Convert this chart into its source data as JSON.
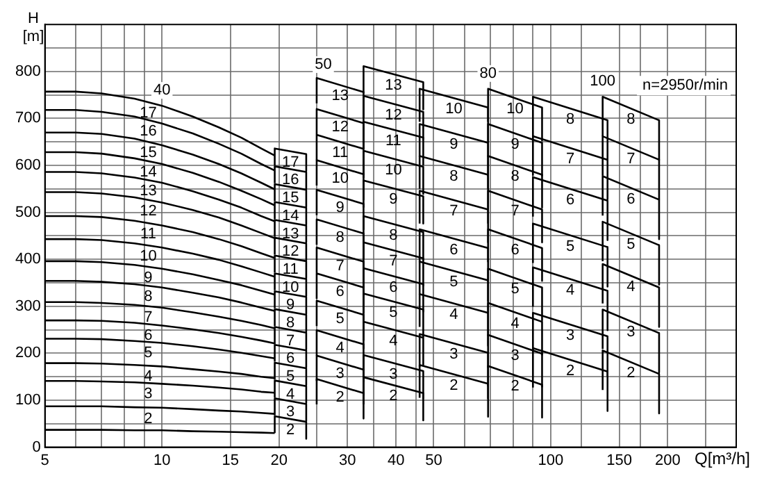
{
  "chart_data": {
    "type": "line",
    "xlabel": "Q[m³/h]",
    "ylabel": "H [m]",
    "log": "x",
    "grid": true,
    "legend": false,
    "marker": "none",
    "line_style": "solid",
    "xlim": [
      5,
      300
    ],
    "ylim": [
      0,
      900
    ],
    "xticks": [
      5,
      {
        "value": 6,
        "label": null
      },
      {
        "value": 7,
        "label": null
      },
      {
        "value": 8,
        "label": null
      },
      {
        "value": 9,
        "label": null
      },
      10,
      15,
      20,
      {
        "value": 25,
        "label": null
      },
      30,
      {
        "value": 35,
        "label": null
      },
      40,
      {
        "value": 45,
        "label": null
      },
      50,
      {
        "value": 60,
        "label": null
      },
      {
        "value": 70,
        "label": null
      },
      {
        "value": 80,
        "label": null
      },
      {
        "value": 90,
        "label": null
      },
      100,
      {
        "value": 120,
        "label": null
      },
      150,
      {
        "value": 170,
        "label": null
      },
      200,
      {
        "value": 250,
        "label": null
      }
    ],
    "yticks": [
      0,
      {
        "value": 50,
        "label": null
      },
      100,
      {
        "value": 150,
        "label": null
      },
      200,
      {
        "value": 250,
        "label": null
      },
      300,
      {
        "value": 350,
        "label": null
      },
      400,
      {
        "value": 450,
        "label": null
      },
      500,
      {
        "value": 550,
        "label": null
      },
      600,
      {
        "value": 650,
        "label": null
      },
      700,
      {
        "value": 750,
        "label": null
      },
      800,
      {
        "value": 850,
        "label": null
      }
    ],
    "x": [
      5,
      6,
      7,
      8.5,
      10,
      12,
      14,
      16,
      18,
      19.5
    ],
    "series": [
      {
        "color": "#000000",
        "values": [
          37,
          37,
          37,
          36,
          36,
          34,
          33,
          32,
          31,
          30
        ]
      },
      {
        "name": "2",
        "color": "#000000",
        "values": [
          87,
          87,
          87,
          85,
          84,
          81,
          78,
          76,
          73,
          71
        ]
      },
      {
        "name": "3",
        "color": "#000000",
        "values": [
          141,
          141,
          140,
          138,
          135,
          131,
          127,
          123,
          118,
          116
        ]
      },
      {
        "name": "4",
        "color": "#000000",
        "values": [
          179,
          179,
          178,
          175,
          172,
          166,
          161,
          156,
          150,
          147
        ]
      },
      {
        "name": "5",
        "color": "#000000",
        "values": [
          231,
          231,
          230,
          226,
          222,
          215,
          208,
          201,
          194,
          189
        ]
      },
      {
        "name": "6",
        "color": "#000000",
        "values": [
          270,
          270,
          269,
          265,
          259,
          251,
          243,
          235,
          227,
          221
        ]
      },
      {
        "name": "7",
        "color": "#000000",
        "values": [
          309,
          309,
          307,
          303,
          297,
          287,
          278,
          269,
          260,
          253
        ]
      },
      {
        "name": "8",
        "color": "#000000",
        "values": [
          354,
          354,
          352,
          347,
          340,
          329,
          319,
          308,
          297,
          290
        ]
      },
      {
        "name": "9",
        "color": "#000000",
        "values": [
          396,
          396,
          394,
          388,
          380,
          368,
          356,
          345,
          333,
          325
        ]
      },
      {
        "name": "10",
        "color": "#000000",
        "values": [
          443,
          443,
          441,
          434,
          425,
          412,
          399,
          385,
          372,
          363
        ]
      },
      {
        "name": "11",
        "color": "#000000",
        "values": [
          492,
          492,
          490,
          482,
          472,
          458,
          443,
          428,
          413,
          403
        ]
      },
      {
        "name": "12",
        "color": "#000000",
        "values": [
          543,
          543,
          540,
          532,
          521,
          505,
          489,
          472,
          456,
          445
        ]
      },
      {
        "name": "13",
        "color": "#000000",
        "values": [
          586,
          586,
          583,
          574,
          563,
          545,
          527,
          510,
          492,
          481
        ]
      },
      {
        "name": "14",
        "color": "#000000",
        "values": [
          628,
          628,
          625,
          615,
          603,
          584,
          565,
          546,
          528,
          515
        ]
      },
      {
        "name": "15",
        "color": "#000000",
        "values": [
          670,
          670,
          667,
          657,
          643,
          623,
          603,
          583,
          563,
          549
        ]
      },
      {
        "name": "16",
        "color": "#000000",
        "values": [
          718,
          718,
          714,
          704,
          689,
          668,
          646,
          625,
          603,
          589
        ]
      },
      {
        "name": "17",
        "color": "#000000",
        "values": [
          757,
          757,
          753,
          742,
          727,
          704,
          681,
          659,
          636,
          621
        ]
      },
      {
        "name": "2",
        "color": "#000000",
        "x": [
          19.5,
          19.5,
          23.5,
          23.5
        ],
        "values": [
          30,
          66,
          54,
          18
        ]
      },
      {
        "name": "3",
        "color": "#000000",
        "x": [
          19.5,
          19.5,
          23.5,
          23.5
        ],
        "values": [
          68,
          104,
          92,
          56
        ]
      },
      {
        "name": "4",
        "color": "#000000",
        "x": [
          19.5,
          19.5,
          23.5,
          23.5
        ],
        "values": [
          106,
          142,
          130,
          94
        ]
      },
      {
        "name": "5",
        "color": "#000000",
        "x": [
          19.5,
          19.5,
          23.5,
          23.5
        ],
        "values": [
          144,
          180,
          168,
          132
        ]
      },
      {
        "name": "6",
        "color": "#000000",
        "x": [
          19.5,
          19.5,
          23.5,
          23.5
        ],
        "values": [
          182,
          218,
          206,
          170
        ]
      },
      {
        "name": "7",
        "color": "#000000",
        "x": [
          19.5,
          19.5,
          23.5,
          23.5
        ],
        "values": [
          220,
          256,
          244,
          208
        ]
      },
      {
        "name": "8",
        "color": "#000000",
        "x": [
          19.5,
          19.5,
          23.5,
          23.5
        ],
        "values": [
          258,
          294,
          282,
          246
        ]
      },
      {
        "name": "9",
        "color": "#000000",
        "x": [
          19.5,
          19.5,
          23.5,
          23.5
        ],
        "values": [
          296,
          332,
          320,
          284
        ]
      },
      {
        "name": "10",
        "color": "#000000",
        "x": [
          19.5,
          19.5,
          23.5,
          23.5
        ],
        "values": [
          334,
          370,
          358,
          322
        ]
      },
      {
        "name": "11",
        "color": "#000000",
        "x": [
          19.5,
          19.5,
          23.5,
          23.5
        ],
        "values": [
          372,
          408,
          396,
          360
        ]
      },
      {
        "name": "12",
        "color": "#000000",
        "x": [
          19.5,
          19.5,
          23.5,
          23.5
        ],
        "values": [
          410,
          446,
          434,
          398
        ]
      },
      {
        "name": "13",
        "color": "#000000",
        "x": [
          19.5,
          19.5,
          23.5,
          23.5
        ],
        "values": [
          448,
          484,
          472,
          436
        ]
      },
      {
        "name": "14",
        "color": "#000000",
        "x": [
          19.5,
          19.5,
          23.5,
          23.5
        ],
        "values": [
          486,
          522,
          510,
          474
        ]
      },
      {
        "name": "15",
        "color": "#000000",
        "x": [
          19.5,
          19.5,
          23.5,
          23.5
        ],
        "values": [
          524,
          560,
          548,
          512
        ]
      },
      {
        "name": "16",
        "color": "#000000",
        "x": [
          19.5,
          19.5,
          23.5,
          23.5
        ],
        "values": [
          562,
          598,
          586,
          550
        ]
      },
      {
        "name": "17",
        "color": "#000000",
        "x": [
          19.5,
          19.5,
          23.5,
          23.5
        ],
        "values": [
          600,
          636,
          624,
          588
        ]
      },
      {
        "name": "2",
        "color": "#000000",
        "x": [
          25,
          25,
          33,
          33
        ],
        "values": [
          91,
          145,
          115,
          61
        ]
      },
      {
        "name": "3",
        "color": "#000000",
        "x": [
          25,
          25,
          33,
          33
        ],
        "values": [
          141,
          195,
          165,
          111
        ]
      },
      {
        "name": "4",
        "color": "#000000",
        "x": [
          25,
          25,
          33,
          33
        ],
        "values": [
          195,
          249,
          219,
          165
        ]
      },
      {
        "name": "5",
        "color": "#000000",
        "x": [
          25,
          25,
          33,
          33
        ],
        "values": [
          258,
          312,
          282,
          228
        ]
      },
      {
        "name": "6",
        "color": "#000000",
        "x": [
          25,
          25,
          33,
          33
        ],
        "values": [
          316,
          370,
          340,
          286
        ]
      },
      {
        "name": "7",
        "color": "#000000",
        "x": [
          25,
          25,
          33,
          33
        ],
        "values": [
          371,
          425,
          395,
          341
        ]
      },
      {
        "name": "8",
        "color": "#000000",
        "x": [
          25,
          25,
          33,
          33
        ],
        "values": [
          431,
          485,
          455,
          401
        ]
      },
      {
        "name": "9",
        "color": "#000000",
        "x": [
          25,
          25,
          33,
          33
        ],
        "values": [
          494,
          548,
          518,
          464
        ]
      },
      {
        "name": "10",
        "color": "#000000",
        "x": [
          25,
          25,
          33,
          33
        ],
        "values": [
          557,
          611,
          581,
          527
        ]
      },
      {
        "name": "11",
        "color": "#000000",
        "x": [
          25,
          25,
          33,
          33
        ],
        "values": [
          611,
          665,
          635,
          581
        ]
      },
      {
        "name": "12",
        "color": "#000000",
        "x": [
          25,
          25,
          33,
          33
        ],
        "values": [
          666,
          720,
          690,
          636
        ]
      },
      {
        "name": "13",
        "color": "#000000",
        "x": [
          25,
          25,
          33,
          33
        ],
        "values": [
          732,
          786,
          756,
          702
        ]
      },
      {
        "name": "2",
        "color": "#000000",
        "x": [
          33,
          33,
          47,
          47
        ],
        "values": [
          91,
          149,
          115,
          57
        ]
      },
      {
        "name": "3",
        "color": "#000000",
        "x": [
          33,
          33,
          47,
          47
        ],
        "values": [
          138,
          196,
          162,
          104
        ]
      },
      {
        "name": "4",
        "color": "#000000",
        "x": [
          33,
          33,
          47,
          47
        ],
        "values": [
          209,
          267,
          233,
          175
        ]
      },
      {
        "name": "5",
        "color": "#000000",
        "x": [
          33,
          33,
          47,
          47
        ],
        "values": [
          269,
          327,
          293,
          235
        ]
      },
      {
        "name": "6",
        "color": "#000000",
        "x": [
          33,
          33,
          47,
          47
        ],
        "values": [
          323,
          381,
          347,
          289
        ]
      },
      {
        "name": "7",
        "color": "#000000",
        "x": [
          33,
          33,
          47,
          47
        ],
        "values": [
          378,
          436,
          402,
          344
        ]
      },
      {
        "name": "8",
        "color": "#000000",
        "x": [
          33,
          33,
          47,
          47
        ],
        "values": [
          434,
          492,
          458,
          400
        ]
      },
      {
        "name": "9",
        "color": "#000000",
        "x": [
          33,
          33,
          47,
          47
        ],
        "values": [
          510,
          568,
          534,
          476
        ]
      },
      {
        "name": "10",
        "color": "#000000",
        "x": [
          33,
          33,
          47,
          47
        ],
        "values": [
          573,
          631,
          597,
          539
        ]
      },
      {
        "name": "11",
        "color": "#000000",
        "x": [
          33,
          33,
          47,
          47
        ],
        "values": [
          635,
          693,
          659,
          601
        ]
      },
      {
        "name": "12",
        "color": "#000000",
        "x": [
          33,
          33,
          47,
          47
        ],
        "values": [
          690,
          748,
          714,
          656
        ]
      },
      {
        "name": "13",
        "color": "#000000",
        "x": [
          33,
          33,
          47,
          47
        ],
        "values": [
          753,
          811,
          777,
          719
        ]
      },
      {
        "name": "2",
        "color": "#000000",
        "x": [
          46,
          46,
          69,
          69
        ],
        "values": [
          105,
          175,
          135,
          65
        ]
      },
      {
        "name": "3",
        "color": "#000000",
        "x": [
          46,
          46,
          69,
          69
        ],
        "values": [
          171,
          241,
          201,
          131
        ]
      },
      {
        "name": "4",
        "color": "#000000",
        "x": [
          46,
          46,
          69,
          69
        ],
        "values": [
          256,
          326,
          286,
          216
        ]
      },
      {
        "name": "5",
        "color": "#000000",
        "x": [
          46,
          46,
          69,
          69
        ],
        "values": [
          325,
          395,
          355,
          285
        ]
      },
      {
        "name": "6",
        "color": "#000000",
        "x": [
          46,
          46,
          69,
          69
        ],
        "values": [
          394,
          464,
          424,
          354
        ]
      },
      {
        "name": "7",
        "color": "#000000",
        "x": [
          46,
          46,
          69,
          69
        ],
        "values": [
          476,
          546,
          506,
          436
        ]
      },
      {
        "name": "8",
        "color": "#000000",
        "x": [
          46,
          46,
          69,
          69
        ],
        "values": [
          550,
          620,
          580,
          510
        ]
      },
      {
        "name": "9",
        "color": "#000000",
        "x": [
          46,
          46,
          69,
          69
        ],
        "values": [
          618,
          688,
          648,
          578
        ]
      },
      {
        "name": "10",
        "color": "#000000",
        "x": [
          46,
          46,
          69,
          69
        ],
        "values": [
          693,
          763,
          723,
          653
        ]
      },
      {
        "name": "2",
        "color": "#000000",
        "x": [
          69,
          69,
          95,
          95
        ],
        "values": [
          103,
          173,
          133,
          63
        ]
      },
      {
        "name": "3",
        "color": "#000000",
        "x": [
          69,
          69,
          95,
          95
        ],
        "values": [
          169,
          239,
          199,
          129
        ]
      },
      {
        "name": "4",
        "color": "#000000",
        "x": [
          69,
          69,
          95,
          95
        ],
        "values": [
          237,
          307,
          267,
          197
        ]
      },
      {
        "name": "5",
        "color": "#000000",
        "x": [
          69,
          69,
          95,
          95
        ],
        "values": [
          310,
          380,
          340,
          270
        ]
      },
      {
        "name": "6",
        "color": "#000000",
        "x": [
          69,
          69,
          95,
          95
        ],
        "values": [
          394,
          464,
          424,
          354
        ]
      },
      {
        "name": "7",
        "color": "#000000",
        "x": [
          69,
          69,
          95,
          95
        ],
        "values": [
          476,
          546,
          506,
          436
        ]
      },
      {
        "name": "8",
        "color": "#000000",
        "x": [
          69,
          69,
          95,
          95
        ],
        "values": [
          550,
          620,
          580,
          510
        ]
      },
      {
        "name": "9",
        "color": "#000000",
        "x": [
          69,
          69,
          95,
          95
        ],
        "values": [
          618,
          688,
          648,
          578
        ]
      },
      {
        "name": "10",
        "color": "#000000",
        "x": [
          69,
          69,
          95,
          95
        ],
        "values": [
          693,
          763,
          723,
          653
        ]
      },
      {
        "name": "2",
        "color": "#000000",
        "x": [
          90,
          90,
          140,
          140
        ],
        "values": [
          127,
          211,
          161,
          77
        ]
      },
      {
        "name": "3",
        "color": "#000000",
        "x": [
          90,
          90,
          140,
          140
        ],
        "values": [
          202,
          286,
          236,
          152
        ]
      },
      {
        "name": "4",
        "color": "#000000",
        "x": [
          90,
          90,
          140,
          140
        ],
        "values": [
          299,
          383,
          333,
          249
        ]
      },
      {
        "name": "5",
        "color": "#000000",
        "x": [
          90,
          90,
          140,
          140
        ],
        "values": [
          392,
          476,
          426,
          342
        ]
      },
      {
        "name": "6",
        "color": "#000000",
        "x": [
          90,
          90,
          140,
          140
        ],
        "values": [
          491,
          575,
          525,
          441
        ]
      },
      {
        "name": "7",
        "color": "#000000",
        "x": [
          90,
          90,
          140,
          140
        ],
        "values": [
          578,
          662,
          612,
          528
        ]
      },
      {
        "name": "8",
        "color": "#000000",
        "x": [
          90,
          90,
          140,
          140
        ],
        "values": [
          662,
          746,
          696,
          612
        ]
      },
      {
        "name": "2",
        "color": "#000000",
        "x": [
          136,
          136,
          190,
          190
        ],
        "values": [
          122,
          206,
          156,
          72
        ]
      },
      {
        "name": "3",
        "color": "#000000",
        "x": [
          136,
          136,
          190,
          190
        ],
        "values": [
          209,
          293,
          243,
          159
        ]
      },
      {
        "name": "4",
        "color": "#000000",
        "x": [
          136,
          136,
          190,
          190
        ],
        "values": [
          306,
          390,
          340,
          256
        ]
      },
      {
        "name": "5",
        "color": "#000000",
        "x": [
          136,
          136,
          190,
          190
        ],
        "values": [
          396,
          480,
          430,
          346
        ]
      },
      {
        "name": "6",
        "color": "#000000",
        "x": [
          136,
          136,
          190,
          190
        ],
        "values": [
          493,
          577,
          527,
          443
        ]
      },
      {
        "name": "7",
        "color": "#000000",
        "x": [
          136,
          136,
          190,
          190
        ],
        "values": [
          578,
          662,
          612,
          528
        ]
      },
      {
        "name": "8",
        "color": "#000000",
        "x": [
          136,
          136,
          190,
          190
        ],
        "values": [
          662,
          746,
          696,
          612
        ]
      }
    ],
    "annotations": [
      "n=2950r/min",
      {
        "text": "40",
        "x": 10,
        "y": 727
      },
      {
        "text": "50",
        "x": 26,
        "y": 782
      },
      {
        "text": "80",
        "x": 69,
        "y": 763
      },
      {
        "text": "100",
        "x": 136,
        "y": 746
      }
    ]
  }
}
